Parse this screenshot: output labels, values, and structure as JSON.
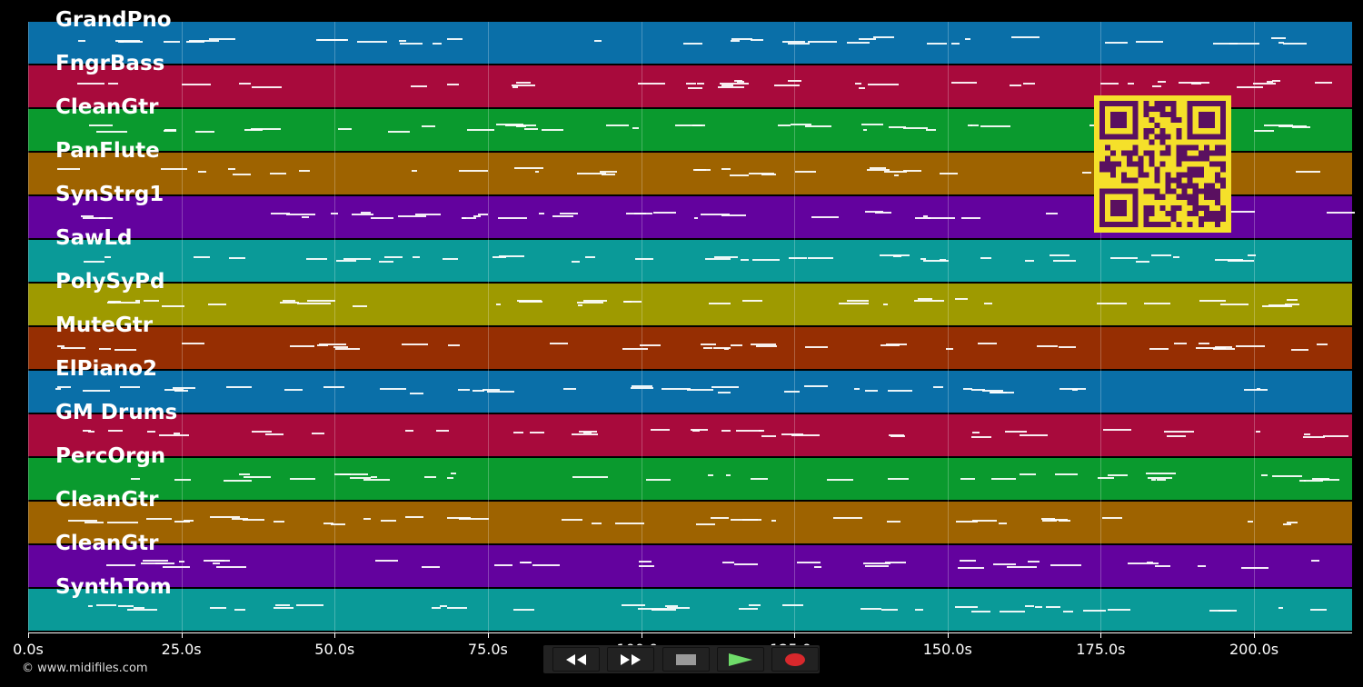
{
  "tracks": [
    {
      "name": "GrandPno",
      "color": "#0a6fa8"
    },
    {
      "name": "FngrBass",
      "color": "#a80a3c"
    },
    {
      "name": "CleanGtr",
      "color": "#0a9a2e"
    },
    {
      "name": "PanFlute",
      "color": "#9e6300"
    },
    {
      "name": "SynStrg1",
      "color": "#63029e"
    },
    {
      "name": "SawLd",
      "color": "#0a9a98"
    },
    {
      "name": "PolySyPd",
      "color": "#9e9a00"
    },
    {
      "name": "MuteGtr",
      "color": "#962e02"
    },
    {
      "name": "ElPiano2",
      "color": "#0a6fa8"
    },
    {
      "name": "GM Drums",
      "color": "#a80a3c"
    },
    {
      "name": "PercOrgn",
      "color": "#0a9a2e"
    },
    {
      "name": "CleanGtr",
      "color": "#9e6300"
    },
    {
      "name": "CleanGtr",
      "color": "#63029e"
    },
    {
      "name": "SynthTom",
      "color": "#0a9a98"
    }
  ],
  "timeline": {
    "max_seconds": 216,
    "ticks": [
      "0.0s",
      "25.0s",
      "50.0s",
      "75.0s",
      "100.0s",
      "125.0s",
      "150.0s",
      "175.0s",
      "200.0s"
    ]
  },
  "transport": {
    "buttons": [
      {
        "id": "rewind",
        "icon": "rewind-icon",
        "color": "#111111"
      },
      {
        "id": "fast-forward",
        "icon": "fast-forward-icon",
        "color": "#111111"
      },
      {
        "id": "stop",
        "icon": "stop-icon",
        "color": "#3a3a3a"
      },
      {
        "id": "play",
        "icon": "play-icon",
        "color": "#1e5b22"
      },
      {
        "id": "record",
        "icon": "record-icon",
        "color": "#4a1212"
      }
    ]
  },
  "overlay": {
    "qr_color": "#f5e02a",
    "qr_fg": "#5a1060"
  },
  "footer": {
    "copyright": "© www.midifiles.com"
  }
}
